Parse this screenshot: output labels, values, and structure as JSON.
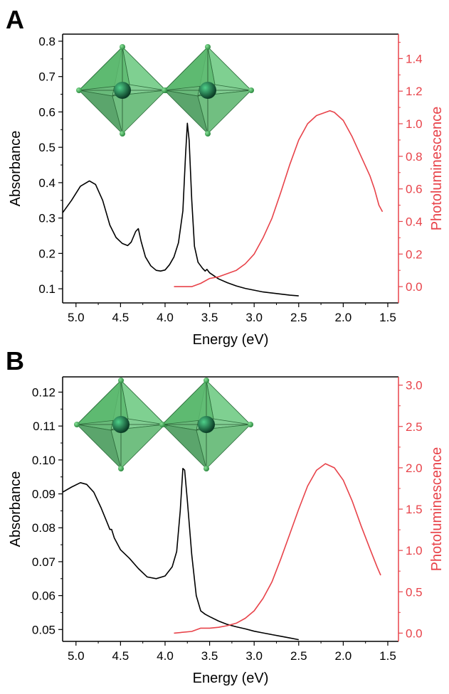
{
  "chart_data": [
    {
      "type": "line",
      "panel": "A",
      "xlabel": "Energy (eV)",
      "ylabel": "Absorbance",
      "y2label": "Photoluminescence",
      "x_reversed": true,
      "xlim": [
        5.15,
        1.38
      ],
      "ylim": [
        0.06,
        0.82
      ],
      "y2lim": [
        -0.1,
        1.55
      ],
      "x_ticks": [
        "5.0",
        "4.5",
        "4.0",
        "3.5",
        "3.0",
        "2.5",
        "2.0",
        "1.5"
      ],
      "y_ticks": [
        "0.1",
        "0.2",
        "0.3",
        "0.4",
        "0.5",
        "0.6",
        "0.7",
        "0.8"
      ],
      "y2_ticks": [
        "0.0",
        "0.2",
        "0.4",
        "0.6",
        "0.8",
        "1.0",
        "1.2",
        "1.4"
      ],
      "absorbance_color": "#000000",
      "pl_color": "#e8434a",
      "series": [
        {
          "axis": "left",
          "points": [
            [
              5.15,
              0.315
            ],
            [
              5.05,
              0.35
            ],
            [
              4.95,
              0.39
            ],
            [
              4.85,
              0.405
            ],
            [
              4.78,
              0.395
            ],
            [
              4.7,
              0.35
            ],
            [
              4.62,
              0.28
            ],
            [
              4.55,
              0.245
            ],
            [
              4.48,
              0.228
            ],
            [
              4.42,
              0.222
            ],
            [
              4.38,
              0.232
            ],
            [
              4.33,
              0.262
            ],
            [
              4.3,
              0.27
            ],
            [
              4.27,
              0.235
            ],
            [
              4.22,
              0.19
            ],
            [
              4.16,
              0.165
            ],
            [
              4.1,
              0.152
            ],
            [
              4.05,
              0.15
            ],
            [
              4.0,
              0.153
            ],
            [
              3.95,
              0.168
            ],
            [
              3.9,
              0.19
            ],
            [
              3.85,
              0.23
            ],
            [
              3.8,
              0.32
            ],
            [
              3.77,
              0.48
            ],
            [
              3.75,
              0.568
            ],
            [
              3.73,
              0.52
            ],
            [
              3.7,
              0.35
            ],
            [
              3.67,
              0.22
            ],
            [
              3.63,
              0.175
            ],
            [
              3.58,
              0.158
            ],
            [
              3.55,
              0.15
            ],
            [
              3.53,
              0.155
            ],
            [
              3.5,
              0.145
            ],
            [
              3.4,
              0.128
            ],
            [
              3.3,
              0.117
            ],
            [
              3.2,
              0.108
            ],
            [
              3.1,
              0.101
            ],
            [
              3.0,
              0.096
            ],
            [
              2.9,
              0.091
            ],
            [
              2.8,
              0.088
            ],
            [
              2.7,
              0.085
            ],
            [
              2.6,
              0.082
            ],
            [
              2.5,
              0.08
            ]
          ]
        },
        {
          "axis": "right",
          "points": [
            [
              3.9,
              0.0
            ],
            [
              3.7,
              0.0
            ],
            [
              3.6,
              0.02
            ],
            [
              3.5,
              0.05
            ],
            [
              3.4,
              0.06
            ],
            [
              3.3,
              0.08
            ],
            [
              3.2,
              0.1
            ],
            [
              3.1,
              0.14
            ],
            [
              3.0,
              0.2
            ],
            [
              2.9,
              0.3
            ],
            [
              2.8,
              0.42
            ],
            [
              2.7,
              0.58
            ],
            [
              2.6,
              0.75
            ],
            [
              2.5,
              0.9
            ],
            [
              2.4,
              1.0
            ],
            [
              2.3,
              1.05
            ],
            [
              2.2,
              1.07
            ],
            [
              2.15,
              1.08
            ],
            [
              2.1,
              1.07
            ],
            [
              2.0,
              1.02
            ],
            [
              1.9,
              0.92
            ],
            [
              1.8,
              0.8
            ],
            [
              1.7,
              0.68
            ],
            [
              1.65,
              0.6
            ],
            [
              1.6,
              0.5
            ],
            [
              1.56,
              0.46
            ]
          ]
        }
      ]
    },
    {
      "type": "line",
      "panel": "B",
      "xlabel": "Energy (eV)",
      "ylabel": "Absorbance",
      "y2label": "Photoluminescence",
      "x_reversed": true,
      "xlim": [
        5.15,
        1.38
      ],
      "ylim": [
        0.0465,
        0.1245
      ],
      "y2lim": [
        -0.1,
        3.1
      ],
      "x_ticks": [
        "5.0",
        "4.5",
        "4.0",
        "3.5",
        "3.0",
        "2.5",
        "2.0",
        "1.5"
      ],
      "y_ticks": [
        "0.05",
        "0.06",
        "0.07",
        "0.08",
        "0.09",
        "0.10",
        "0.11",
        "0.12"
      ],
      "y2_ticks": [
        "0.0",
        "0.5",
        "1.0",
        "1.5",
        "2.0",
        "2.5",
        "3.0"
      ],
      "absorbance_color": "#000000",
      "pl_color": "#e8434a",
      "series": [
        {
          "axis": "left",
          "points": [
            [
              5.15,
              0.0905
            ],
            [
              5.05,
              0.092
            ],
            [
              4.95,
              0.0933
            ],
            [
              4.88,
              0.0928
            ],
            [
              4.8,
              0.0905
            ],
            [
              4.72,
              0.086
            ],
            [
              4.65,
              0.0815
            ],
            [
              4.62,
              0.0795
            ],
            [
              4.6,
              0.0795
            ],
            [
              4.57,
              0.077
            ],
            [
              4.5,
              0.0735
            ],
            [
              4.4,
              0.071
            ],
            [
              4.3,
              0.068
            ],
            [
              4.2,
              0.0655
            ],
            [
              4.1,
              0.065
            ],
            [
              4.0,
              0.0658
            ],
            [
              3.92,
              0.0685
            ],
            [
              3.87,
              0.073
            ],
            [
              3.83,
              0.085
            ],
            [
              3.8,
              0.0975
            ],
            [
              3.78,
              0.097
            ],
            [
              3.75,
              0.088
            ],
            [
              3.7,
              0.072
            ],
            [
              3.65,
              0.06
            ],
            [
              3.6,
              0.0555
            ],
            [
              3.55,
              0.0545
            ],
            [
              3.5,
              0.0538
            ],
            [
              3.4,
              0.0525
            ],
            [
              3.3,
              0.0515
            ],
            [
              3.2,
              0.0508
            ],
            [
              3.1,
              0.0502
            ],
            [
              3.0,
              0.0495
            ],
            [
              2.9,
              0.049
            ],
            [
              2.8,
              0.0485
            ],
            [
              2.7,
              0.048
            ],
            [
              2.6,
              0.0475
            ],
            [
              2.5,
              0.047
            ]
          ]
        },
        {
          "axis": "right",
          "points": [
            [
              3.9,
              0.0
            ],
            [
              3.7,
              0.02
            ],
            [
              3.6,
              0.06
            ],
            [
              3.5,
              0.06
            ],
            [
              3.4,
              0.07
            ],
            [
              3.3,
              0.09
            ],
            [
              3.2,
              0.12
            ],
            [
              3.1,
              0.18
            ],
            [
              3.0,
              0.27
            ],
            [
              2.9,
              0.42
            ],
            [
              2.8,
              0.62
            ],
            [
              2.7,
              0.9
            ],
            [
              2.6,
              1.2
            ],
            [
              2.5,
              1.5
            ],
            [
              2.4,
              1.78
            ],
            [
              2.3,
              1.97
            ],
            [
              2.2,
              2.05
            ],
            [
              2.1,
              2.0
            ],
            [
              2.0,
              1.85
            ],
            [
              1.9,
              1.6
            ],
            [
              1.8,
              1.3
            ],
            [
              1.7,
              1.02
            ],
            [
              1.62,
              0.8
            ],
            [
              1.58,
              0.7
            ]
          ]
        }
      ]
    }
  ],
  "decoration": {
    "octahedron_fill": "#5fbf73",
    "octahedron_edge": "#2f6e3d",
    "atom_color": "#0f5a3a"
  }
}
